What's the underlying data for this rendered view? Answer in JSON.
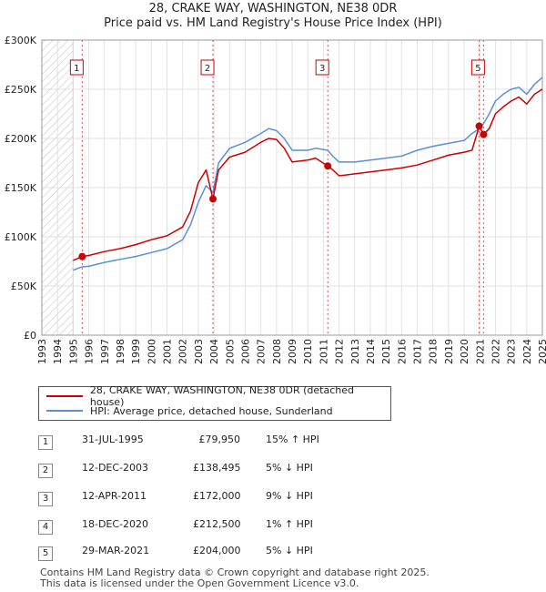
{
  "title": "28, CRAKE WAY, WASHINGTON, NE38 0DR",
  "subtitle": "Price paid vs. HM Land Registry's House Price Index (HPI)",
  "colors": {
    "property": "#cc0000",
    "hpi": "#5b8fd6",
    "marker_line": "#e05050"
  },
  "chart_data": {
    "type": "line",
    "x_range": [
      1993,
      2025
    ],
    "ylim": [
      0,
      300000
    ],
    "y_ticks": [
      "£0",
      "£50K",
      "£100K",
      "£150K",
      "£200K",
      "£250K",
      "£300K"
    ],
    "y_tick_values": [
      0,
      50000,
      100000,
      150000,
      200000,
      250000,
      300000
    ],
    "x_ticks": [
      "1993",
      "1994",
      "1995",
      "1996",
      "1997",
      "1998",
      "1999",
      "2000",
      "2001",
      "2002",
      "2003",
      "2004",
      "2005",
      "2006",
      "2007",
      "2008",
      "2009",
      "2010",
      "2011",
      "2012",
      "2013",
      "2014",
      "2015",
      "2016",
      "2017",
      "2018",
      "2019",
      "2020",
      "2021",
      "2022",
      "2023",
      "2024",
      "2025"
    ],
    "grid": true,
    "hatched_before": 1995.0,
    "series": [
      {
        "name": "28, CRAKE WAY, WASHINGTON, NE38 0DR (detached house)",
        "x": [
          1995.0,
          1995.58,
          1996.0,
          1997.0,
          1998.0,
          1999.0,
          2000.0,
          2001.0,
          2002.0,
          2002.5,
          2003.0,
          2003.5,
          2003.94,
          2004.3,
          2005.0,
          2006.0,
          2007.0,
          2007.5,
          2008.0,
          2008.5,
          2009.0,
          2010.0,
          2010.5,
          2011.28,
          2011.6,
          2012.0,
          2013.0,
          2014.0,
          2015.0,
          2016.0,
          2017.0,
          2018.0,
          2019.0,
          2020.0,
          2020.5,
          2020.96,
          2021.24,
          2021.6,
          2022.0,
          2022.5,
          2023.0,
          2023.5,
          2024.0,
          2024.5,
          2025.0
        ],
        "y": [
          76000,
          79950,
          81000,
          85000,
          88000,
          92000,
          97000,
          101000,
          110000,
          126000,
          155000,
          168000,
          138495,
          168000,
          181000,
          186000,
          196000,
          200000,
          199000,
          190000,
          176000,
          178000,
          180000,
          172000,
          168000,
          162000,
          164000,
          166000,
          168000,
          170000,
          173000,
          178000,
          183000,
          186000,
          188000,
          212500,
          204000,
          210000,
          225000,
          232000,
          238000,
          242000,
          235000,
          245000,
          250000
        ]
      },
      {
        "name": "HPI: Average price, detached house, Sunderland",
        "x": [
          1995.0,
          1995.58,
          1996.0,
          1997.0,
          1998.0,
          1999.0,
          2000.0,
          2001.0,
          2002.0,
          2002.5,
          2003.0,
          2003.5,
          2003.94,
          2004.3,
          2005.0,
          2006.0,
          2007.0,
          2007.5,
          2008.0,
          2008.5,
          2009.0,
          2010.0,
          2010.5,
          2011.28,
          2011.6,
          2012.0,
          2013.0,
          2014.0,
          2015.0,
          2016.0,
          2017.0,
          2018.0,
          2019.0,
          2020.0,
          2020.5,
          2020.96,
          2021.24,
          2021.6,
          2022.0,
          2022.5,
          2023.0,
          2023.5,
          2024.0,
          2024.5,
          2025.0
        ],
        "y": [
          66000,
          69500,
          70000,
          74000,
          77000,
          80000,
          84000,
          88000,
          97000,
          112000,
          135000,
          152000,
          145000,
          175000,
          190000,
          196000,
          205000,
          210000,
          208000,
          200000,
          188000,
          188000,
          190000,
          188000,
          182000,
          176000,
          176000,
          178000,
          180000,
          182000,
          188000,
          192000,
          195000,
          198000,
          205000,
          210000,
          215000,
          225000,
          238000,
          245000,
          250000,
          252000,
          245000,
          255000,
          262000
        ]
      }
    ],
    "sales": [
      {
        "label": "1",
        "x": 1995.58,
        "y": 79950
      },
      {
        "label": "2",
        "x": 2003.94,
        "y": 138495
      },
      {
        "label": "3",
        "x": 2011.28,
        "y": 172000
      },
      {
        "label": "4",
        "x": 2020.96,
        "y": 212500
      },
      {
        "label": "5",
        "x": 2021.24,
        "y": 204000
      }
    ],
    "label_boxes_shown": [
      "1",
      "2",
      "3",
      "5"
    ]
  },
  "legend": {
    "property": "28, CRAKE WAY, WASHINGTON, NE38 0DR (detached house)",
    "hpi": "HPI: Average price, detached house, Sunderland"
  },
  "table": [
    {
      "num": "1",
      "date": "31-JUL-1995",
      "price": "£79,950",
      "hpi": "15% ↑ HPI"
    },
    {
      "num": "2",
      "date": "12-DEC-2003",
      "price": "£138,495",
      "hpi": "5% ↓ HPI"
    },
    {
      "num": "3",
      "date": "12-APR-2011",
      "price": "£172,000",
      "hpi": "9% ↓ HPI"
    },
    {
      "num": "4",
      "date": "18-DEC-2020",
      "price": "£212,500",
      "hpi": "1% ↑ HPI"
    },
    {
      "num": "5",
      "date": "29-MAR-2021",
      "price": "£204,000",
      "hpi": "5% ↓ HPI"
    }
  ],
  "footer": [
    "Contains HM Land Registry data © Crown copyright and database right 2025.",
    "This data is licensed under the Open Government Licence v3.0."
  ]
}
